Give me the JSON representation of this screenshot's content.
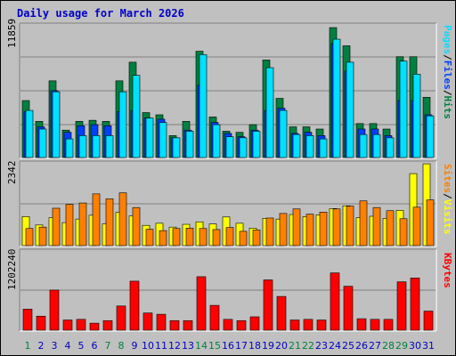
{
  "page": {
    "title": "Daily usage for March 2026",
    "days": [
      "1",
      "2",
      "3",
      "4",
      "5",
      "6",
      "7",
      "8",
      "9",
      "10",
      "11",
      "12",
      "13",
      "14",
      "15",
      "16",
      "17",
      "18",
      "19",
      "20",
      "21",
      "22",
      "23",
      "24",
      "25",
      "26",
      "27",
      "28",
      "29",
      "30",
      "31"
    ],
    "weekend_days": [
      1,
      7,
      8,
      14,
      15,
      21,
      22,
      28,
      29
    ],
    "top": {
      "max_label": "11859",
      "right_labels": [
        "Pages",
        "Files",
        "Hits"
      ]
    },
    "mid": {
      "max_label": "2342",
      "right_labels": [
        "Sites",
        "Visits"
      ]
    },
    "bot": {
      "max_label": "1202240",
      "right_labels": [
        "KBytes"
      ]
    }
  },
  "colors": {
    "hits": "#008040",
    "files": "#0040ff",
    "pages": "#00e0ff",
    "visits": "#ffff00",
    "sites": "#ff8000",
    "kbytes": "#ff0000",
    "weekday": "#0000c0",
    "weekend": "#008040"
  },
  "chart_data": [
    {
      "type": "bar",
      "ylim": [
        0,
        11859
      ],
      "categories": [
        "1",
        "2",
        "3",
        "4",
        "5",
        "6",
        "7",
        "8",
        "9",
        "10",
        "11",
        "12",
        "13",
        "14",
        "15",
        "16",
        "17",
        "18",
        "19",
        "20",
        "21",
        "22",
        "23",
        "24",
        "25",
        "26",
        "27",
        "28",
        "29",
        "30",
        "31"
      ],
      "series": [
        {
          "name": "Hits",
          "values": [
            5200,
            3300,
            7000,
            2500,
            3300,
            3400,
            3300,
            7000,
            8700,
            4100,
            3900,
            2000,
            3300,
            9700,
            3700,
            2400,
            2300,
            3000,
            8900,
            5400,
            2800,
            2800,
            2600,
            11859,
            10200,
            3100,
            3100,
            2600,
            9200,
            9200,
            5500
          ]
        },
        {
          "name": "Files",
          "values": [
            4200,
            2800,
            6100,
            2300,
            2900,
            3000,
            2900,
            4200,
            4300,
            3600,
            3500,
            1800,
            2500,
            6600,
            3200,
            2200,
            1900,
            2500,
            4300,
            4500,
            2200,
            2300,
            2000,
            10400,
            7900,
            2600,
            2600,
            2000,
            5200,
            5200,
            3900
          ]
        },
        {
          "name": "Pages",
          "values": [
            4300,
            2600,
            6000,
            1700,
            2000,
            2000,
            2000,
            6000,
            7500,
            3600,
            3200,
            1800,
            2400,
            9400,
            3000,
            1900,
            1800,
            2400,
            8200,
            4300,
            2100,
            2000,
            1700,
            10800,
            8700,
            2100,
            2100,
            1800,
            8800,
            7600,
            3800
          ]
        }
      ]
    },
    {
      "type": "bar",
      "ylim": [
        0,
        2342
      ],
      "categories": [
        "1",
        "2",
        "3",
        "4",
        "5",
        "6",
        "7",
        "8",
        "9",
        "10",
        "11",
        "12",
        "13",
        "14",
        "15",
        "16",
        "17",
        "18",
        "19",
        "20",
        "21",
        "22",
        "23",
        "24",
        "25",
        "26",
        "27",
        "28",
        "29",
        "30",
        "31"
      ],
      "series": [
        {
          "name": "Visits",
          "values": [
            830,
            590,
            800,
            660,
            760,
            870,
            620,
            950,
            850,
            580,
            640,
            530,
            610,
            680,
            620,
            820,
            640,
            500,
            780,
            760,
            890,
            830,
            880,
            1060,
            1140,
            800,
            840,
            780,
            1010,
            2060,
            2340
          ]
        },
        {
          "name": "Sites",
          "values": [
            490,
            530,
            1070,
            1180,
            1220,
            1480,
            1340,
            1510,
            1090,
            470,
            430,
            490,
            500,
            490,
            460,
            520,
            410,
            450,
            790,
            920,
            1050,
            900,
            960,
            1050,
            1130,
            1280,
            1090,
            1000,
            770,
            1100,
            1310
          ]
        }
      ]
    },
    {
      "type": "bar",
      "ylim": [
        0,
        1202240
      ],
      "categories": [
        "1",
        "2",
        "3",
        "4",
        "5",
        "6",
        "7",
        "8",
        "9",
        "10",
        "11",
        "12",
        "13",
        "14",
        "15",
        "16",
        "17",
        "18",
        "19",
        "20",
        "21",
        "22",
        "23",
        "24",
        "25",
        "26",
        "27",
        "28",
        "29",
        "30",
        "31"
      ],
      "series": [
        {
          "name": "KBytes",
          "values": [
            330000,
            220000,
            630000,
            160000,
            170000,
            110000,
            150000,
            380000,
            770000,
            270000,
            250000,
            150000,
            150000,
            840000,
            390000,
            170000,
            150000,
            210000,
            790000,
            530000,
            160000,
            170000,
            160000,
            900000,
            690000,
            180000,
            170000,
            170000,
            760000,
            820000,
            300000
          ]
        }
      ]
    }
  ]
}
